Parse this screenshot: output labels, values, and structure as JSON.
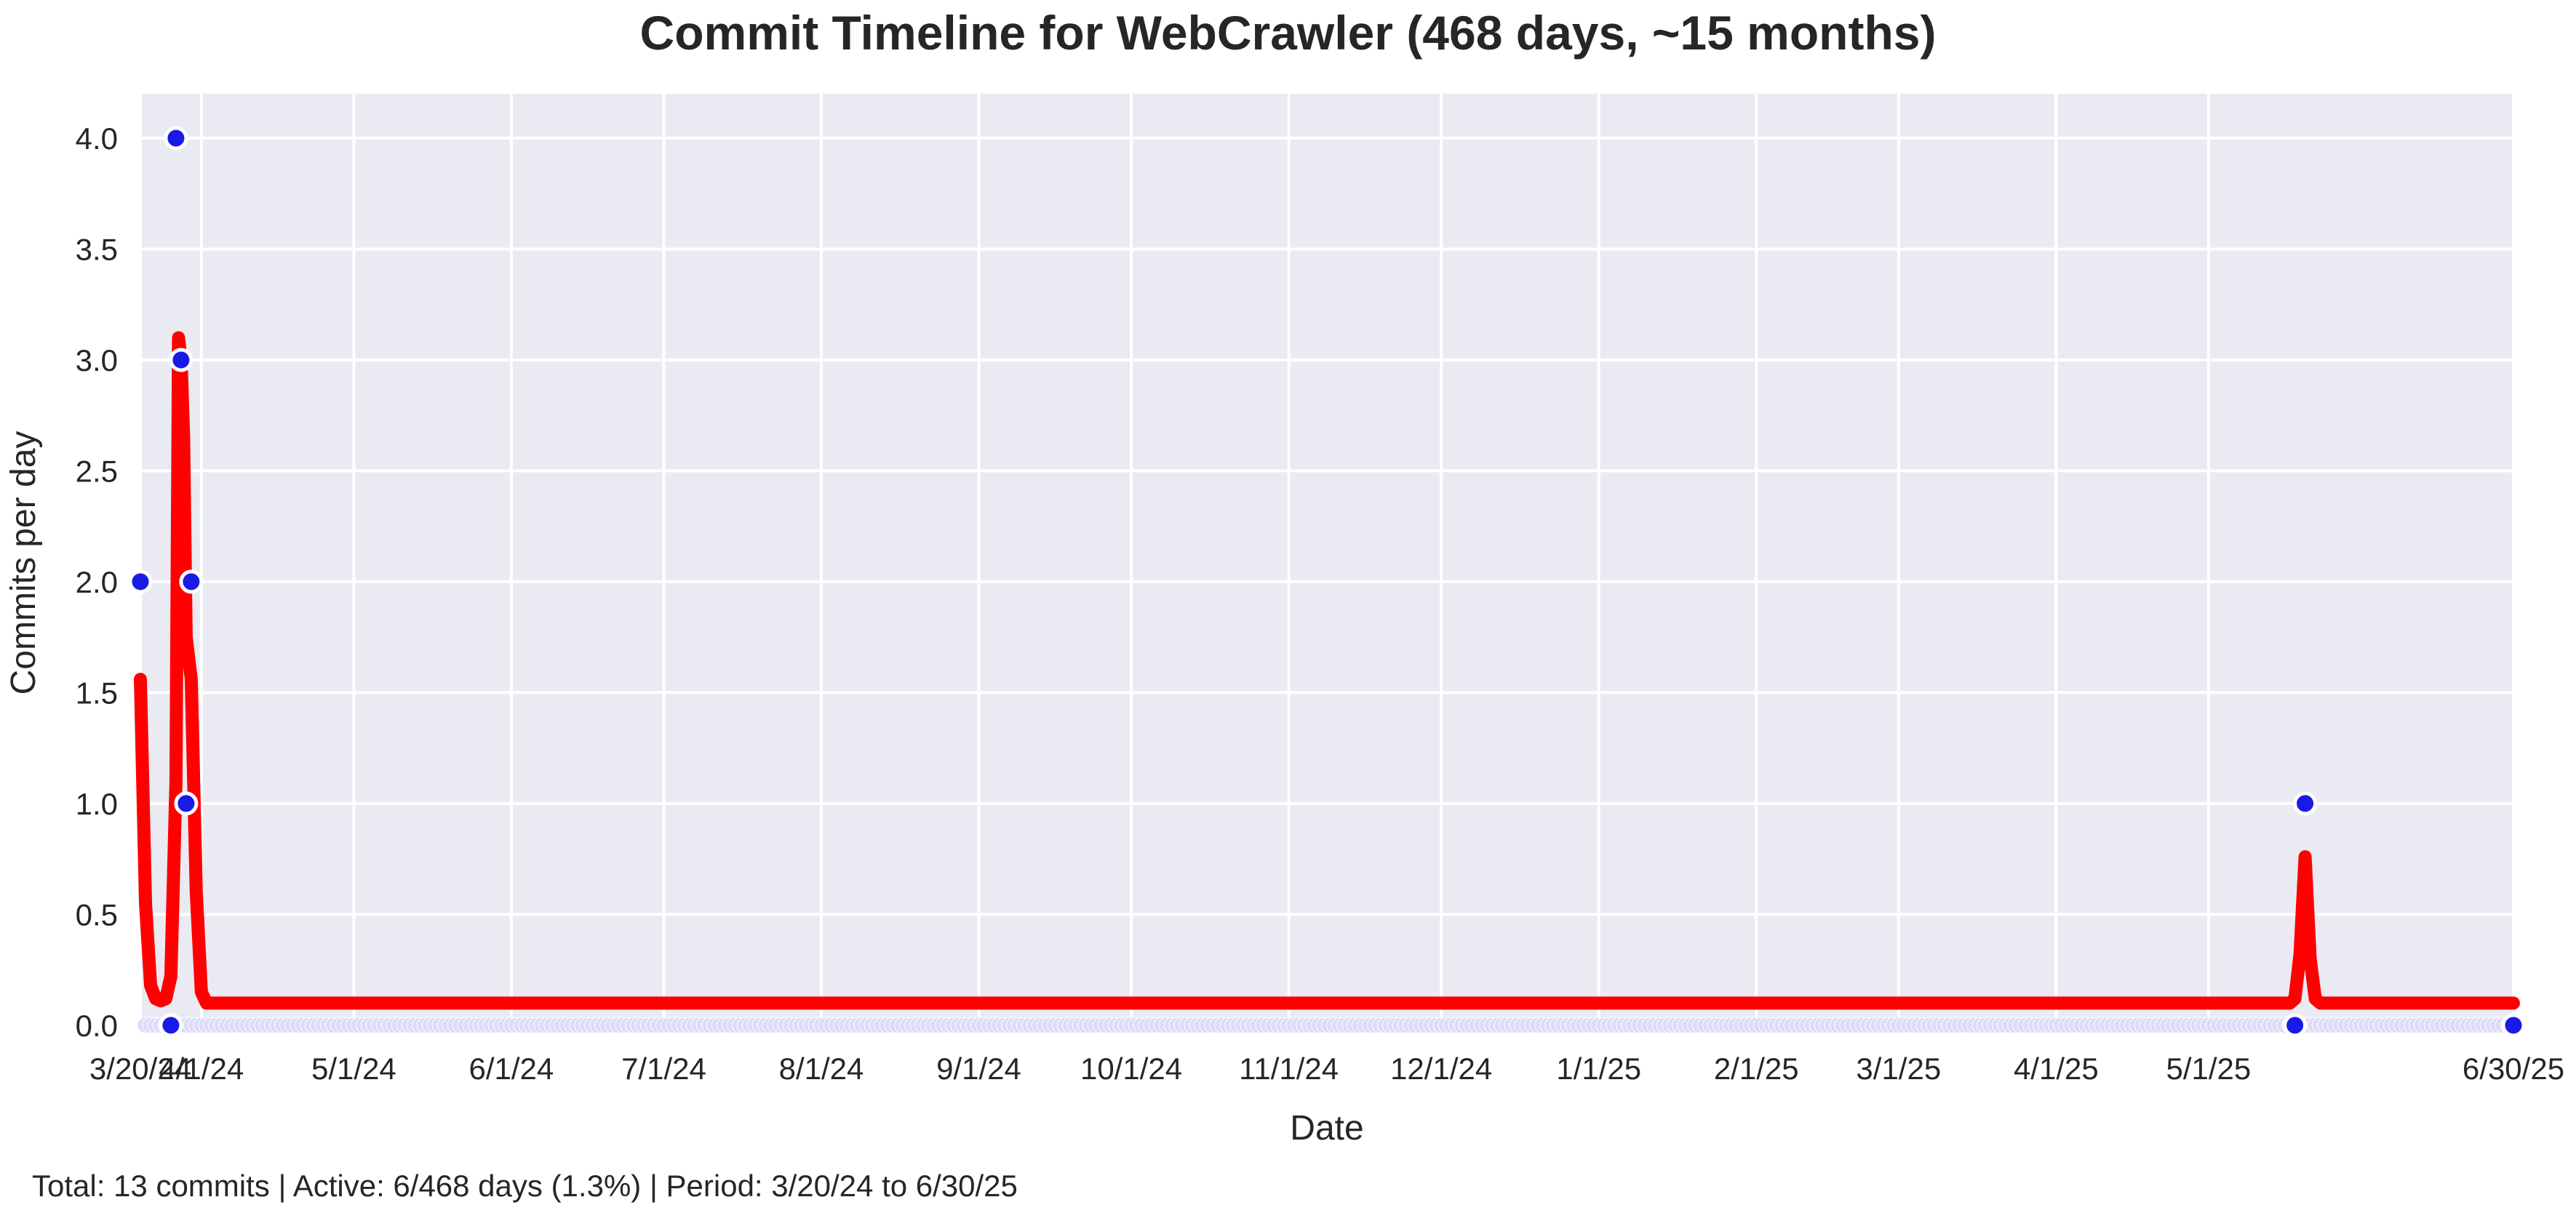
{
  "chart_data": {
    "type": "line",
    "title": "Commit Timeline for WebCrawler (468 days, ~15 months)",
    "xlabel": "Date",
    "ylabel": "Commits per day",
    "x_range": [
      "2024-03-20",
      "2025-06-30"
    ],
    "ylim": [
      -0.03,
      4.2
    ],
    "y_ticks": [
      0.0,
      0.5,
      1.0,
      1.5,
      2.0,
      2.5,
      3.0,
      3.5,
      4.0
    ],
    "y_tick_labels": [
      "0.0",
      "0.5",
      "1.0",
      "1.5",
      "2.0",
      "2.5",
      "3.0",
      "3.5",
      "4.0"
    ],
    "x_ticks": [
      {
        "date": "2024-03-20",
        "label": "3/20/24"
      },
      {
        "date": "2024-04-01",
        "label": "4/1/24"
      },
      {
        "date": "2024-05-01",
        "label": "5/1/24"
      },
      {
        "date": "2024-06-01",
        "label": "6/1/24"
      },
      {
        "date": "2024-07-01",
        "label": "7/1/24"
      },
      {
        "date": "2024-08-01",
        "label": "8/1/24"
      },
      {
        "date": "2024-09-01",
        "label": "9/1/24"
      },
      {
        "date": "2024-10-01",
        "label": "10/1/24"
      },
      {
        "date": "2024-11-01",
        "label": "11/1/24"
      },
      {
        "date": "2024-12-01",
        "label": "12/1/24"
      },
      {
        "date": "2025-01-01",
        "label": "1/1/25"
      },
      {
        "date": "2025-02-01",
        "label": "2/1/25"
      },
      {
        "date": "2025-03-01",
        "label": "3/1/25"
      },
      {
        "date": "2025-04-01",
        "label": "4/1/25"
      },
      {
        "date": "2025-05-01",
        "label": "5/1/25"
      },
      {
        "date": "2025-06-30",
        "label": "6/30/25"
      }
    ],
    "grid": true,
    "series": [
      {
        "kind": "points",
        "color": "#1a1ae6",
        "active_points": [
          {
            "x": "2024-03-20",
            "y": 2
          },
          {
            "x": "2024-03-27",
            "y": 4
          },
          {
            "x": "2024-03-28",
            "y": 3
          },
          {
            "x": "2024-03-29",
            "y": 1
          },
          {
            "x": "2024-03-30",
            "y": 2
          },
          {
            "x": "2025-05-20",
            "y": 1
          }
        ],
        "zero_points": [
          {
            "x": "2024-03-26",
            "y": 0
          },
          {
            "x": "2025-05-18",
            "y": 0
          },
          {
            "x": "2025-06-30",
            "y": 0
          }
        ],
        "zero_run": {
          "from": "2024-03-21",
          "to": "2025-06-30",
          "y": 0
        }
      },
      {
        "kind": "line",
        "color": "#ff0000",
        "points": [
          {
            "x": "2024-03-20",
            "y": 1.56
          },
          {
            "x": "2024-03-21",
            "y": 0.55
          },
          {
            "x": "2024-03-22",
            "y": 0.18
          },
          {
            "x": "2024-03-23",
            "y": 0.12
          },
          {
            "x": "2024-03-24",
            "y": 0.11
          },
          {
            "x": "2024-03-25",
            "y": 0.12
          },
          {
            "x": "2024-03-26",
            "y": 0.22
          },
          {
            "x": "2024-03-27",
            "y": 1.1
          },
          {
            "x": "2024-03-27T12:00",
            "y": 3.1
          },
          {
            "x": "2024-03-28",
            "y": 3.0
          },
          {
            "x": "2024-03-28T12:00",
            "y": 2.65
          },
          {
            "x": "2024-03-29",
            "y": 1.75
          },
          {
            "x": "2024-03-30",
            "y": 1.56
          },
          {
            "x": "2024-03-31",
            "y": 0.6
          },
          {
            "x": "2024-04-01",
            "y": 0.15
          },
          {
            "x": "2024-04-02",
            "y": 0.1
          },
          {
            "x": "2025-05-17",
            "y": 0.1
          },
          {
            "x": "2025-05-18",
            "y": 0.12
          },
          {
            "x": "2025-05-19",
            "y": 0.32
          },
          {
            "x": "2025-05-20",
            "y": 0.76
          },
          {
            "x": "2025-05-21",
            "y": 0.3
          },
          {
            "x": "2025-05-22",
            "y": 0.12
          },
          {
            "x": "2025-05-23",
            "y": 0.1
          },
          {
            "x": "2025-06-30",
            "y": 0.1
          }
        ]
      }
    ],
    "summary": "Total: 13 commits | Active: 6/468 days (1.3%) | Period: 3/20/24 to 6/30/25"
  }
}
